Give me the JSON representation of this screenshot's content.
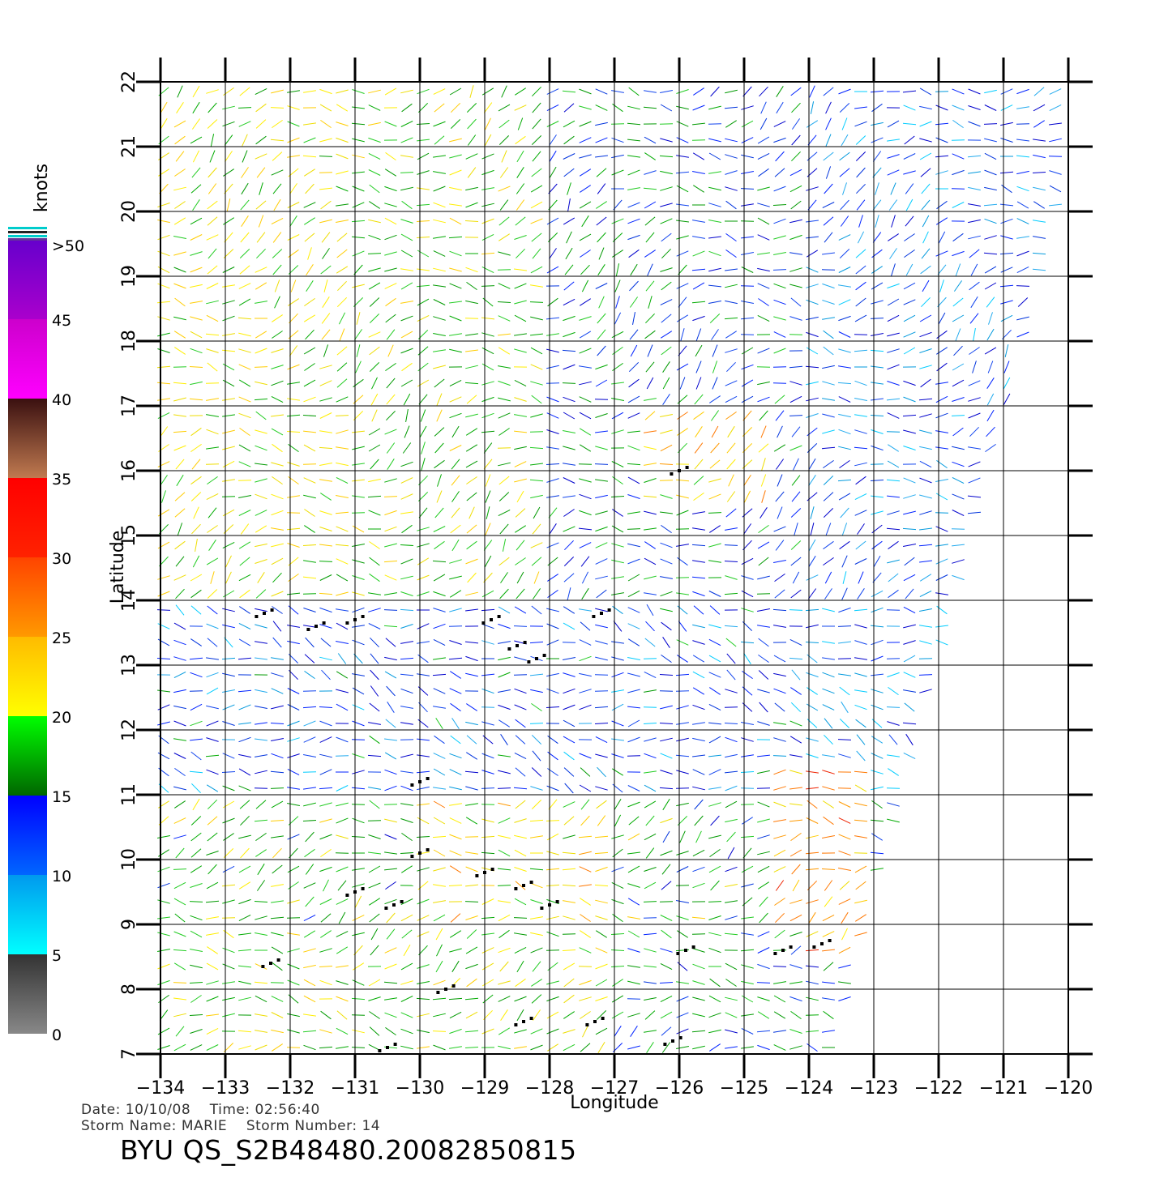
{
  "chart_data": {
    "type": "vector-field",
    "xlabel": "Longitude",
    "ylabel": "Latitude",
    "xlim": [
      -134,
      -120
    ],
    "ylim": [
      7,
      22
    ],
    "x_ticks": [
      "−134",
      "−133",
      "−132",
      "−131",
      "−130",
      "−129",
      "−128",
      "−127",
      "−126",
      "−125",
      "−124",
      "−123",
      "−122",
      "−121",
      "−120"
    ],
    "y_ticks": [
      "7",
      "8",
      "9",
      "10",
      "11",
      "12",
      "13",
      "14",
      "15",
      "16",
      "17",
      "18",
      "19",
      "20",
      "21",
      "22"
    ],
    "grid": true,
    "legend": {
      "title": "knots",
      "placement": "left",
      "labels": [
        "0",
        "5",
        "10",
        "15",
        "20",
        "25",
        "30",
        "35",
        "40",
        "45",
        ">50"
      ],
      "bands": [
        {
          "from": 0,
          "to": 5,
          "colors": [
            "#888888",
            "#333333"
          ]
        },
        {
          "from": 5,
          "to": 10,
          "colors": [
            "#00ffff",
            "#0099ee"
          ]
        },
        {
          "from": 10,
          "to": 15,
          "colors": [
            "#0066ff",
            "#0000ff"
          ]
        },
        {
          "from": 15,
          "to": 20,
          "colors": [
            "#006600",
            "#00ff00"
          ]
        },
        {
          "from": 20,
          "to": 25,
          "colors": [
            "#ffff00",
            "#ffbb00"
          ]
        },
        {
          "from": 25,
          "to": 30,
          "colors": [
            "#ff9900",
            "#ff4400"
          ]
        },
        {
          "from": 30,
          "to": 35,
          "colors": [
            "#ff2200",
            "#ff0000"
          ]
        },
        {
          "from": 35,
          "to": 40,
          "colors": [
            "#c07a50",
            "#3a1010"
          ]
        },
        {
          "from": 40,
          "to": 45,
          "colors": [
            "#ff00ff",
            "#cc00cc"
          ]
        },
        {
          "from": 45,
          "to": 50,
          "colors": [
            "#aa00cc",
            "#6600cc"
          ]
        }
      ]
    },
    "swath_east_edge": [
      [
        -123.5,
        7.5
      ],
      [
        -123.0,
        9.5
      ],
      [
        -122.3,
        12.0
      ],
      [
        -121.7,
        14.3
      ],
      [
        -121.1,
        16.5
      ],
      [
        -120.7,
        18.0
      ],
      [
        -120.3,
        19.5
      ],
      [
        -120.0,
        21.0
      ],
      [
        -119.9,
        22.0
      ]
    ],
    "wind_regions": [
      {
        "lon": [
          -134,
          -131
        ],
        "lat": [
          14,
          22
        ],
        "speed": 21
      },
      {
        "lon": [
          -131,
          -128
        ],
        "lat": [
          14,
          22
        ],
        "speed": 19
      },
      {
        "lon": [
          -128,
          -126
        ],
        "lat": [
          15,
          22
        ],
        "speed": 15
      },
      {
        "lon": [
          -126,
          -124
        ],
        "lat": [
          15,
          22
        ],
        "speed": 14
      },
      {
        "lon": [
          -124,
          -120
        ],
        "lat": [
          14,
          22
        ],
        "speed": 11
      },
      {
        "lon": [
          -126.5,
          -124.5
        ],
        "lat": [
          15.5,
          17
        ],
        "speed": 23
      },
      {
        "lon": [
          -134,
          -124
        ],
        "lat": [
          11,
          14
        ],
        "speed": 12
      },
      {
        "lon": [
          -124,
          -121
        ],
        "lat": [
          11,
          14
        ],
        "speed": 9
      },
      {
        "lon": [
          -134,
          -130
        ],
        "lat": [
          9,
          11
        ],
        "speed": 18
      },
      {
        "lon": [
          -130,
          -127
        ],
        "lat": [
          9,
          11
        ],
        "speed": 22
      },
      {
        "lon": [
          -127,
          -124
        ],
        "lat": [
          9,
          11
        ],
        "speed": 17
      },
      {
        "lon": [
          -124.5,
          -123
        ],
        "lat": [
          8.5,
          11.5
        ],
        "speed": 27
      },
      {
        "lon": [
          -134,
          -127
        ],
        "lat": [
          7,
          9
        ],
        "speed": 19
      },
      {
        "lon": [
          -127,
          -124
        ],
        "lat": [
          7,
          9
        ],
        "speed": 16
      }
    ],
    "rain_flagged_points": [
      [
        -132.4,
        13.8
      ],
      [
        -131.6,
        13.6
      ],
      [
        -131.0,
        13.7
      ],
      [
        -128.9,
        13.7
      ],
      [
        -128.5,
        13.3
      ],
      [
        -128.2,
        13.1
      ],
      [
        -127.2,
        13.8
      ],
      [
        -126.0,
        16.0
      ],
      [
        -130.0,
        11.2
      ],
      [
        -130.0,
        10.1
      ],
      [
        -131.0,
        9.5
      ],
      [
        -130.4,
        9.3
      ],
      [
        -129.0,
        9.8
      ],
      [
        -128.4,
        9.6
      ],
      [
        -128.0,
        9.3
      ],
      [
        -125.9,
        8.6
      ],
      [
        -124.4,
        8.6
      ],
      [
        -123.8,
        8.7
      ],
      [
        -129.6,
        8.0
      ],
      [
        -128.4,
        7.5
      ],
      [
        -127.3,
        7.5
      ],
      [
        -126.1,
        7.2
      ],
      [
        -132.3,
        8.4
      ],
      [
        -130.5,
        7.1
      ]
    ],
    "date_label": "Date:",
    "date": "10/10/08",
    "time_label": "Time:",
    "time": "02:56:40",
    "storm_name_label": "Storm Name:",
    "storm_name": "MARIE",
    "storm_number_label": "Storm Number:",
    "storm_number": "14",
    "product_id": "BYU QS_S2B48480.20082850815"
  }
}
